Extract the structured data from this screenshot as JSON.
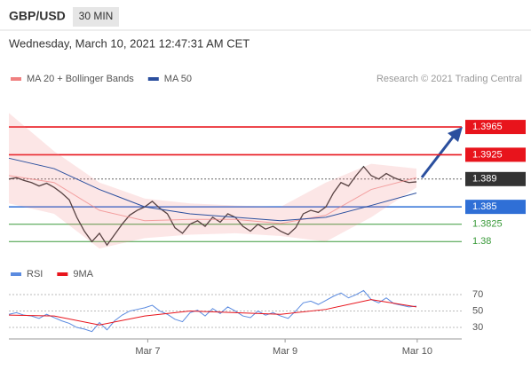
{
  "header": {
    "symbol": "GBP/USD",
    "interval": "30 MIN",
    "timestamp": "Wednesday, March 10, 2021 12:47:31 AM CET",
    "credit": "Research © 2021 Trading Central"
  },
  "chart_data": [
    {
      "type": "line",
      "ylim": [
        1.3771,
        1.402
      ],
      "xlim": [
        0,
        60
      ],
      "series": [
        {
          "color": "#333333",
          "x": [
            0,
            1,
            2,
            3,
            4,
            5,
            6,
            7,
            8,
            9,
            10,
            11,
            12,
            13,
            14,
            15,
            16,
            17,
            18,
            19,
            20,
            21,
            22,
            23,
            24,
            25,
            26,
            27,
            28,
            29,
            30,
            31,
            32,
            33,
            34,
            35,
            36,
            37,
            38,
            39,
            40,
            41,
            42,
            43,
            44,
            45,
            46,
            47,
            48,
            49,
            50,
            51,
            52,
            53,
            54
          ],
          "values": [
            1.389,
            1.3892,
            1.3888,
            1.3885,
            1.388,
            1.3884,
            1.3878,
            1.387,
            1.386,
            1.3835,
            1.3815,
            1.38,
            1.3812,
            1.3795,
            1.381,
            1.3825,
            1.3838,
            1.3845,
            1.385,
            1.3858,
            1.3848,
            1.384,
            1.382,
            1.3812,
            1.3825,
            1.383,
            1.3822,
            1.3835,
            1.3828,
            1.384,
            1.3835,
            1.3822,
            1.3815,
            1.3825,
            1.3818,
            1.3822,
            1.3815,
            1.381,
            1.382,
            1.384,
            1.3845,
            1.3842,
            1.385,
            1.387,
            1.3885,
            1.388,
            1.3895,
            1.3908,
            1.3895,
            1.389,
            1.3898,
            1.3892,
            1.3888,
            1.3885,
            1.3886
          ]
        },
        {
          "name": "MA 20 + Bollinger Bands",
          "color": "#f08080",
          "x": [
            0,
            6,
            12,
            18,
            24,
            30,
            36,
            42,
            48,
            54
          ],
          "values": [
            1.3895,
            1.3885,
            1.3845,
            1.383,
            1.3832,
            1.3832,
            1.3826,
            1.3838,
            1.3875,
            1.3892
          ],
          "upper": [
            1.3985,
            1.393,
            1.3885,
            1.3862,
            1.3855,
            1.3852,
            1.385,
            1.3885,
            1.3912,
            1.3905
          ],
          "lower": [
            1.3855,
            1.384,
            1.379,
            1.3805,
            1.381,
            1.3812,
            1.3808,
            1.38,
            1.3835,
            1.3878
          ]
        },
        {
          "name": "MA 50",
          "color": "#2b4f9e",
          "x": [
            0,
            6,
            12,
            18,
            24,
            30,
            36,
            42,
            48,
            54
          ],
          "values": [
            1.392,
            1.3905,
            1.3875,
            1.385,
            1.384,
            1.3835,
            1.383,
            1.3835,
            1.3852,
            1.387
          ]
        }
      ],
      "levels": [
        {
          "value": 1.3965,
          "color": "#e8141c",
          "style": "box"
        },
        {
          "value": 1.3925,
          "color": "#e8141c",
          "style": "box"
        },
        {
          "value": 1.389,
          "color": "#333333",
          "style": "box"
        },
        {
          "value": 1.385,
          "color": "#2f6fd6",
          "style": "box"
        },
        {
          "value": 1.3825,
          "color": "#3a9a3a",
          "style": "text"
        },
        {
          "value": 1.38,
          "color": "#3a9a3a",
          "style": "text"
        }
      ]
    },
    {
      "type": "line",
      "ylim": [
        16,
        83
      ],
      "yticks": [
        30,
        50,
        70
      ],
      "xlim": [
        0,
        60
      ],
      "xticks": [
        {
          "value": 18.4,
          "label": "Mar 7"
        },
        {
          "value": 36.6,
          "label": "Mar 9"
        },
        {
          "value": 54.1,
          "label": "Mar 10"
        }
      ],
      "series": [
        {
          "name": "RSI",
          "color": "#5b8be0",
          "x": [
            0,
            1,
            2,
            3,
            4,
            5,
            6,
            7,
            8,
            9,
            10,
            11,
            12,
            13,
            14,
            15,
            16,
            17,
            18,
            19,
            20,
            21,
            22,
            23,
            24,
            25,
            26,
            27,
            28,
            29,
            30,
            31,
            32,
            33,
            34,
            35,
            36,
            37,
            38,
            39,
            40,
            41,
            42,
            43,
            44,
            45,
            46,
            47,
            48,
            49,
            50,
            51,
            52,
            53,
            54
          ],
          "values": [
            46,
            48,
            45,
            44,
            41,
            46,
            42,
            38,
            35,
            30,
            28,
            25,
            36,
            27,
            38,
            45,
            50,
            52,
            54,
            57,
            50,
            46,
            40,
            37,
            48,
            51,
            44,
            53,
            47,
            55,
            50,
            44,
            42,
            50,
            45,
            48,
            44,
            41,
            50,
            60,
            62,
            58,
            63,
            68,
            72,
            66,
            70,
            75,
            64,
            60,
            66,
            59,
            57,
            55,
            56
          ]
        },
        {
          "name": "9MA",
          "color": "#e8141c",
          "x": [
            0,
            6,
            12,
            18,
            24,
            30,
            36,
            42,
            48,
            54
          ],
          "values": [
            45,
            44,
            33,
            44,
            50,
            48,
            46,
            52,
            64,
            55
          ]
        }
      ]
    }
  ]
}
